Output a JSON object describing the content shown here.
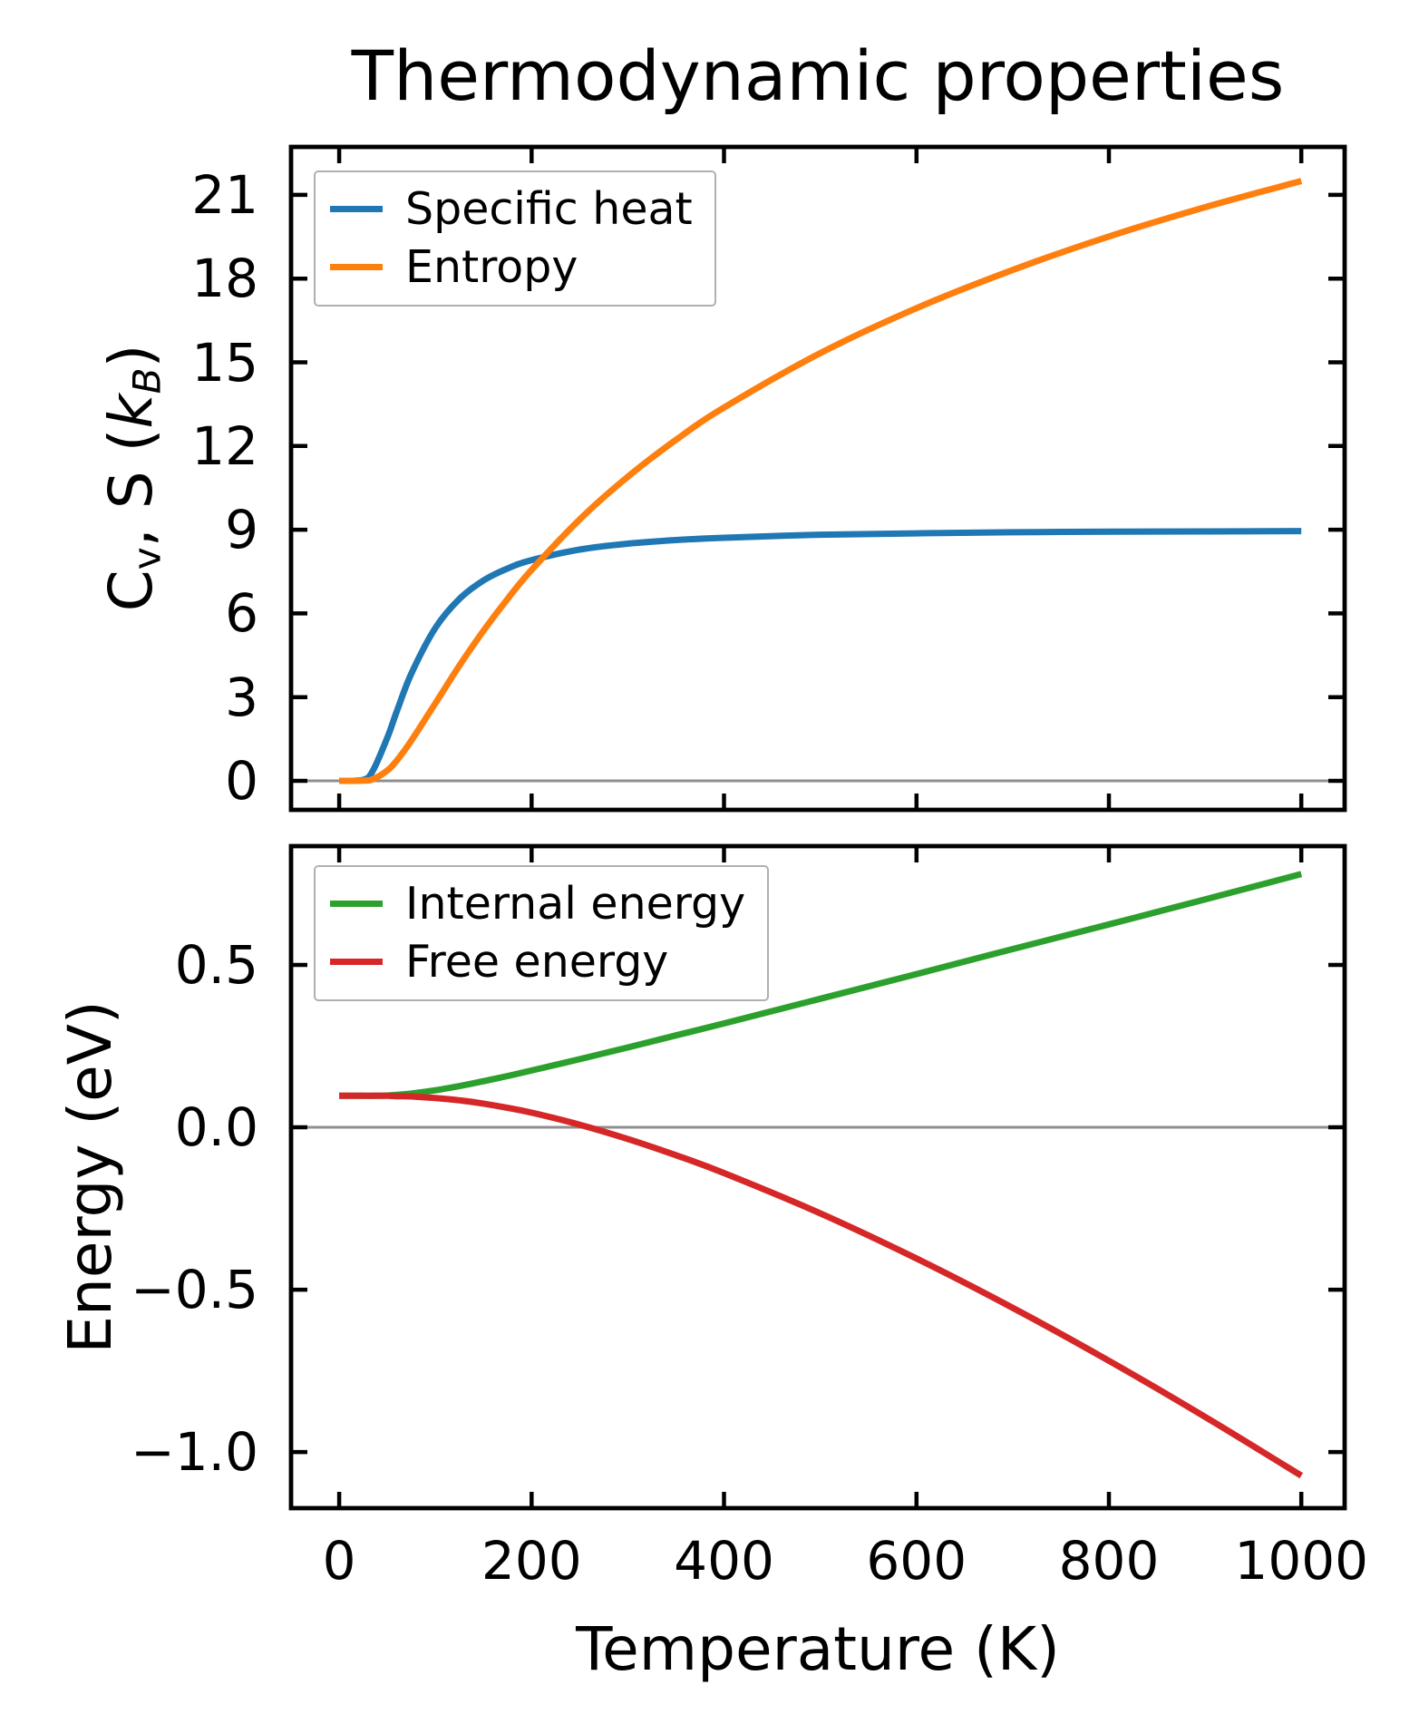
{
  "figure": {
    "title": "Thermodynamic properties",
    "colors": {
      "axis": "#000000",
      "text": "#000000",
      "zero_line": "#8f8f8f",
      "legend_border": "#b0b0b0",
      "background": "#ffffff"
    }
  },
  "chart_data": [
    {
      "type": "line",
      "title": "Thermodynamic properties",
      "ylabel": "Cv, S (kB)",
      "ylabel_segments": [
        {
          "text": "C"
        },
        {
          "text": "v",
          "style": "sub"
        },
        {
          "text": ", S ("
        },
        {
          "text": "k",
          "style": "ital"
        },
        {
          "text": "B",
          "style": "sub ital"
        },
        {
          "text": ")"
        }
      ],
      "xlabel": "",
      "xlim": [
        -50,
        1045
      ],
      "ylim": [
        -1.04,
        22.72
      ],
      "grid": false,
      "zero_line": true,
      "legend_visible": true,
      "legend_loc": "upper left",
      "xticks": {
        "values": [
          0,
          200,
          400,
          600,
          800,
          1000
        ],
        "labels": [
          "0",
          "200",
          "400",
          "600",
          "800",
          "1000"
        ],
        "show_labels": false
      },
      "yticks": {
        "values": [
          0,
          3,
          6,
          9,
          12,
          15,
          18,
          21
        ],
        "labels": [
          "0",
          "3",
          "6",
          "9",
          "12",
          "15",
          "18",
          "21"
        ]
      },
      "x": [
        0,
        25,
        35,
        50,
        60,
        75,
        100,
        125,
        150,
        175,
        200,
        250,
        300,
        350,
        400,
        500,
        600,
        700,
        800,
        900,
        1000
      ],
      "series": [
        {
          "name": "Specific heat",
          "color": "#1f77b4",
          "values": [
            0,
            0.04,
            0.36,
            1.54,
            2.5,
            3.84,
            5.48,
            6.52,
            7.18,
            7.61,
            7.91,
            8.29,
            8.5,
            8.63,
            8.71,
            8.82,
            8.87,
            8.91,
            8.93,
            8.94,
            8.95
          ]
        },
        {
          "name": "Entropy",
          "color": "#ff7f0e",
          "values": [
            0,
            0.005,
            0.06,
            0.37,
            0.73,
            1.44,
            2.78,
            4.13,
            5.38,
            6.52,
            7.56,
            9.37,
            10.9,
            12.22,
            13.38,
            15.33,
            16.94,
            18.31,
            19.51,
            20.56,
            21.5
          ]
        }
      ]
    },
    {
      "type": "line",
      "title": "",
      "ylabel": "Energy (eV)",
      "xlabel": "Temperature (K)",
      "xlim": [
        -50,
        1045
      ],
      "ylim": [
        -1.173,
        0.866
      ],
      "grid": false,
      "zero_line": true,
      "legend_visible": true,
      "legend_loc": "upper left",
      "xticks": {
        "values": [
          0,
          200,
          400,
          600,
          800,
          1000
        ],
        "labels": [
          "0",
          "200",
          "400",
          "600",
          "800",
          "1000"
        ],
        "show_labels": true
      },
      "yticks": {
        "values": [
          -1.0,
          -0.5,
          0.0,
          0.5
        ],
        "labels": [
          "−1.0",
          "−0.5",
          "0.0",
          "0.5"
        ]
      },
      "x": [
        0,
        25,
        35,
        50,
        60,
        75,
        100,
        125,
        150,
        175,
        200,
        250,
        300,
        350,
        400,
        500,
        600,
        700,
        800,
        900,
        1000
      ],
      "series": [
        {
          "name": "Internal energy",
          "color": "#2ca02c",
          "values": [
            0.097,
            0.097,
            0.097,
            0.098,
            0.1,
            0.104,
            0.114,
            0.127,
            0.142,
            0.158,
            0.175,
            0.21,
            0.246,
            0.283,
            0.32,
            0.396,
            0.472,
            0.549,
            0.625,
            0.702,
            0.78
          ]
        },
        {
          "name": "Free energy",
          "color": "#d62728",
          "values": [
            0.097,
            0.097,
            0.097,
            0.097,
            0.096,
            0.095,
            0.09,
            0.083,
            0.073,
            0.06,
            0.045,
            0.008,
            -0.036,
            -0.086,
            -0.141,
            -0.265,
            -0.404,
            -0.556,
            -0.719,
            -0.892,
            -1.073
          ]
        }
      ]
    }
  ]
}
